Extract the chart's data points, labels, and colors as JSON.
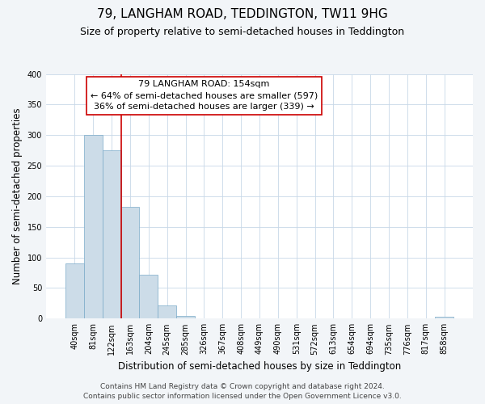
{
  "title": "79, LANGHAM ROAD, TEDDINGTON, TW11 9HG",
  "subtitle": "Size of property relative to semi-detached houses in Teddington",
  "xlabel": "Distribution of semi-detached houses by size in Teddington",
  "ylabel": "Number of semi-detached properties",
  "bin_labels": [
    "40sqm",
    "81sqm",
    "122sqm",
    "163sqm",
    "204sqm",
    "245sqm",
    "285sqm",
    "326sqm",
    "367sqm",
    "408sqm",
    "449sqm",
    "490sqm",
    "531sqm",
    "572sqm",
    "613sqm",
    "654sqm",
    "694sqm",
    "735sqm",
    "776sqm",
    "817sqm",
    "858sqm"
  ],
  "bar_values": [
    90,
    300,
    275,
    183,
    72,
    21,
    5,
    0,
    0,
    0,
    0,
    0,
    0,
    0,
    0,
    0,
    0,
    0,
    0,
    0,
    3
  ],
  "bar_color": "#ccdce8",
  "bar_edge_color": "#7aaac8",
  "annotation_title": "79 LANGHAM ROAD: 154sqm",
  "annotation_line1": "← 64% of semi-detached houses are smaller (597)",
  "annotation_line2": "36% of semi-detached houses are larger (339) →",
  "annotation_box_color": "#ffffff",
  "annotation_box_edge": "#cc0000",
  "vline_color": "#cc0000",
  "ylim": [
    0,
    400
  ],
  "yticks": [
    0,
    50,
    100,
    150,
    200,
    250,
    300,
    350,
    400
  ],
  "footer1": "Contains HM Land Registry data © Crown copyright and database right 2024.",
  "footer2": "Contains public sector information licensed under the Open Government Licence v3.0.",
  "bg_color": "#f2f5f8",
  "plot_bg_color": "#ffffff",
  "title_fontsize": 11,
  "subtitle_fontsize": 9,
  "annot_title_fontsize": 8.5,
  "annot_body_fontsize": 8,
  "axis_label_fontsize": 8.5,
  "tick_fontsize": 7,
  "footer_fontsize": 6.5
}
